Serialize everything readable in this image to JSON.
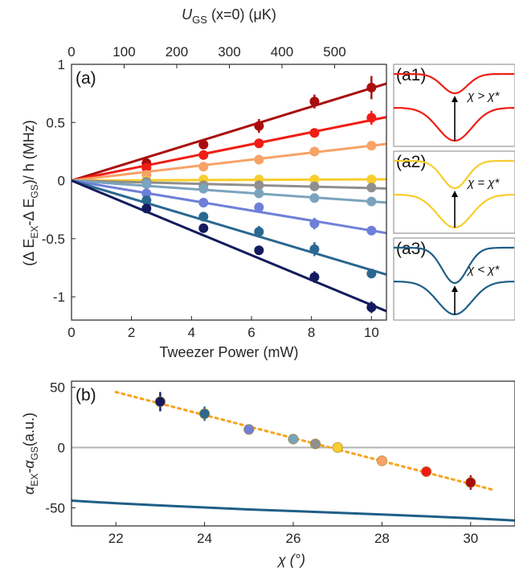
{
  "chart_data": [
    {
      "type": "scatter",
      "panel_label": "(a)",
      "xlabel": "Tweezer Power (mW)",
      "ylabel": "(Δ E_EX-Δ E_GS)/ h (MHz)",
      "xlim": [
        0,
        10.5
      ],
      "ylim": [
        -1.2,
        1.0
      ],
      "xticks": [
        0,
        2,
        4,
        6,
        8,
        10
      ],
      "yticks": [
        1,
        0.5,
        0,
        -0.5,
        -1
      ],
      "ytick_labels": [
        "1",
        "0.5",
        "0",
        "-0.5",
        "-1"
      ],
      "top_axis": {
        "label": "U_GS (x=0) (μK)",
        "ticks": [
          0,
          100,
          200,
          300,
          400,
          500
        ],
        "uk_per_mw": 57
      },
      "x": [
        2.5,
        4.4,
        6.25,
        8.1,
        10
      ],
      "series": [
        {
          "color": "#a90d0d",
          "slope": 0.0795,
          "values": [
            0.15,
            0.31,
            0.47,
            0.68,
            0.8
          ],
          "errors": [
            0.02,
            0.03,
            0.06,
            0.06,
            0.1
          ]
        },
        {
          "color": "#f01d14",
          "slope": 0.052,
          "values": [
            0.11,
            0.22,
            0.32,
            0.41,
            0.54
          ],
          "errors": [
            0.02,
            0.02,
            0.03,
            0.04,
            0.06
          ]
        },
        {
          "color": "#f8a267",
          "slope": 0.03,
          "values": [
            0.05,
            0.12,
            0.18,
            0.25,
            0.3
          ],
          "errors": [
            0.01,
            0.02,
            0.02,
            0.04,
            0.03
          ]
        },
        {
          "color": "#f8cd2d",
          "slope": 0.001,
          "values": [
            0.0,
            0.01,
            0.01,
            0.01,
            0.01
          ],
          "errors": [
            0.01,
            0.01,
            0.02,
            0.02,
            0.02
          ]
        },
        {
          "color": "#8f8f8f",
          "slope": -0.0065,
          "values": [
            -0.01,
            -0.04,
            -0.04,
            -0.05,
            -0.06
          ],
          "errors": [
            0.01,
            0.01,
            0.02,
            0.02,
            0.02
          ]
        },
        {
          "color": "#7aa3bd",
          "slope": -0.018,
          "values": [
            -0.03,
            -0.07,
            -0.11,
            -0.15,
            -0.18
          ],
          "errors": [
            0.01,
            0.01,
            0.02,
            0.03,
            0.03
          ]
        },
        {
          "color": "#6e7fd8",
          "slope": -0.043,
          "values": [
            -0.11,
            -0.19,
            -0.23,
            -0.37,
            -0.43
          ],
          "errors": [
            0.02,
            0.03,
            0.03,
            0.05,
            0.04
          ]
        },
        {
          "color": "#2a6890",
          "slope": -0.077,
          "values": [
            -0.17,
            -0.31,
            -0.44,
            -0.59,
            -0.8
          ],
          "errors": [
            0.02,
            0.03,
            0.05,
            0.06,
            0.04
          ]
        },
        {
          "color": "#141b5e",
          "slope": -0.107,
          "values": [
            -0.24,
            -0.41,
            -0.6,
            -0.83,
            -1.09
          ],
          "errors": [
            0.03,
            0.03,
            0.03,
            0.05,
            0.05
          ]
        }
      ]
    },
    {
      "type": "scatter",
      "panel_label": "(b)",
      "xlabel": "χ (°)",
      "ylabel": "α_EX-α_GS(a.u.)",
      "xlim": [
        21,
        31
      ],
      "ylim": [
        -65,
        55
      ],
      "xticks": [
        22,
        24,
        26,
        28,
        30
      ],
      "yticks": [
        50,
        0,
        -50
      ],
      "ytick_labels": [
        "50",
        "0",
        "-50"
      ],
      "points": [
        {
          "x": 23,
          "y": 38,
          "err": 8,
          "color": "#141b5e"
        },
        {
          "x": 24,
          "y": 28,
          "err": 6,
          "color": "#2a6890"
        },
        {
          "x": 25,
          "y": 15,
          "err": 3,
          "color": "#6e7fd8"
        },
        {
          "x": 26,
          "y": 7,
          "err": 2,
          "color": "#7aa3bd"
        },
        {
          "x": 26.5,
          "y": 3,
          "err": 2,
          "color": "#8f8f8f"
        },
        {
          "x": 27,
          "y": 0,
          "err": 2,
          "color": "#f8cd2d"
        },
        {
          "x": 28,
          "y": -11,
          "err": 2,
          "color": "#f8a267"
        },
        {
          "x": 29,
          "y": -20,
          "err": 2,
          "color": "#f01d14"
        },
        {
          "x": 30,
          "y": -29,
          "err": 6,
          "color": "#a90d0d"
        }
      ],
      "fit_line": {
        "x": [
          22,
          30.5
        ],
        "y": [
          46,
          -35
        ],
        "color": "#f7a21b",
        "style": "dotted"
      },
      "zero_line": {
        "y": 0,
        "color": "#b3b3b3"
      },
      "model_curve": {
        "x": [
          21,
          22,
          23,
          24,
          25,
          26,
          27,
          28,
          29,
          30,
          31
        ],
        "y": [
          -44,
          -46.2,
          -48,
          -49.7,
          -51.3,
          -52.7,
          -54.1,
          -55.5,
          -57,
          -58.6,
          -60.5
        ],
        "color": "#1f5f86"
      }
    }
  ],
  "insets": [
    {
      "label": "(a1)",
      "condition": "χ > χ*",
      "color": "#f01d14"
    },
    {
      "label": "(a2)",
      "condition": "χ = χ*",
      "color": "#f8cd2d"
    },
    {
      "label": "(a3)",
      "condition": "χ < χ*",
      "color": "#1f5f86"
    }
  ],
  "labels": {
    "top_axis_prefix": "U",
    "top_axis_sub": "GS",
    "top_axis_suffix": " (x=0) (μK)",
    "ylabel_a": "(Δ E",
    "ylabel_a_sub1": "EX",
    "ylabel_a_mid": "-Δ E",
    "ylabel_a_sub2": "GS",
    "ylabel_a_end": ")/ h (MHz)",
    "ylabel_b_alpha1": "α",
    "ylabel_b_sub1": "EX",
    "ylabel_b_mid": "-α",
    "ylabel_b_sub2": "GS",
    "ylabel_b_end": "(a.u.)"
  }
}
